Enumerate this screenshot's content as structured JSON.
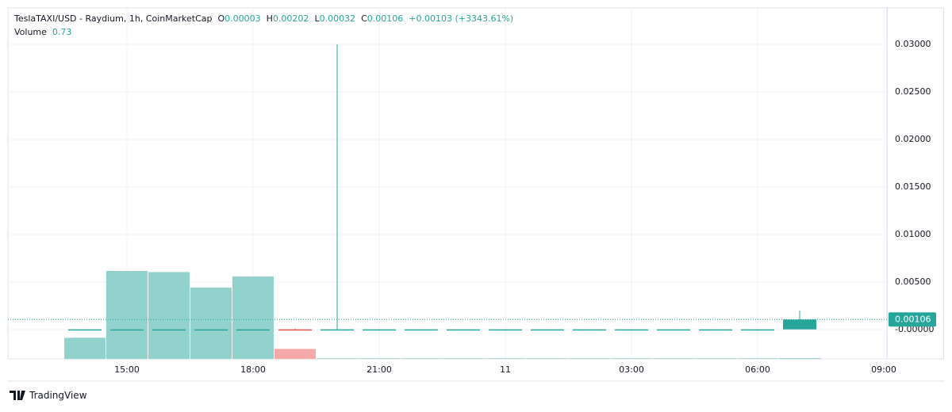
{
  "chart_data": {
    "type": "candlestick",
    "title": "TeslaTAXI/USD - Raydium, 1h, CoinMarketCap",
    "ohlc_labels": [
      "O",
      "H",
      "L",
      "C"
    ],
    "change": "+0.00103 (+3343.61%)",
    "volume_label": "Volume",
    "categories": [
      null,
      "15:00",
      null,
      null,
      "18:00",
      null,
      null,
      "21:00",
      null,
      null,
      "11",
      null,
      null,
      "03:00",
      null,
      null,
      "06:00",
      null,
      null,
      "09:00"
    ],
    "open": [
      2e-05,
      2e-05,
      2e-05,
      2e-05,
      2e-05,
      3e-05,
      2e-05,
      2e-05,
      2e-05,
      2e-05,
      2e-05,
      2e-05,
      2e-05,
      2e-05,
      2e-05,
      2e-05,
      2e-05,
      3e-05,
      null,
      null
    ],
    "high": [
      3e-05,
      3e-05,
      3e-05,
      3e-05,
      3e-05,
      0.0001,
      0.03,
      3e-05,
      3e-05,
      3e-05,
      3e-05,
      3e-05,
      3e-05,
      3e-05,
      3e-05,
      3e-05,
      3e-05,
      0.00202,
      null,
      null
    ],
    "low": [
      2e-05,
      2e-05,
      2e-05,
      2e-05,
      2e-05,
      2e-05,
      1e-05,
      2e-05,
      2e-05,
      2e-05,
      2e-05,
      2e-05,
      2e-05,
      2e-05,
      2e-05,
      2e-05,
      2e-05,
      0.00032,
      null,
      null
    ],
    "close": [
      3e-05,
      3e-05,
      3e-05,
      3e-05,
      3e-05,
      2e-05,
      3e-05,
      3e-05,
      3e-05,
      3e-05,
      3e-05,
      3e-05,
      3e-05,
      3e-05,
      3e-05,
      3e-05,
      3e-05,
      0.00106,
      null,
      null
    ],
    "volume": [
      19,
      79,
      78,
      64,
      74,
      9,
      0.5,
      0.5,
      0.5,
      0.5,
      0.5,
      0.5,
      0.5,
      0.5,
      0.5,
      0.5,
      0.5,
      0.73,
      null,
      null
    ],
    "ylim": [
      -0.00308,
      0.03383
    ],
    "yticks": [
      {
        "value": 0,
        "label": "-0.00000"
      },
      {
        "value": 0.005,
        "label": "0.00500"
      },
      {
        "value": 0.01,
        "label": "0.01000"
      },
      {
        "value": 0.015,
        "label": "0.01500"
      },
      {
        "value": 0.02,
        "label": "0.02000"
      },
      {
        "value": 0.025,
        "label": "0.02500"
      },
      {
        "value": 0.03,
        "label": "0.03000"
      }
    ],
    "grid": true,
    "colors": {
      "up": "#26a69a",
      "down": "#ef5350",
      "volume_up": "#92d2cc",
      "volume_down": "#f7a9a7"
    }
  },
  "branding": "TradingView"
}
